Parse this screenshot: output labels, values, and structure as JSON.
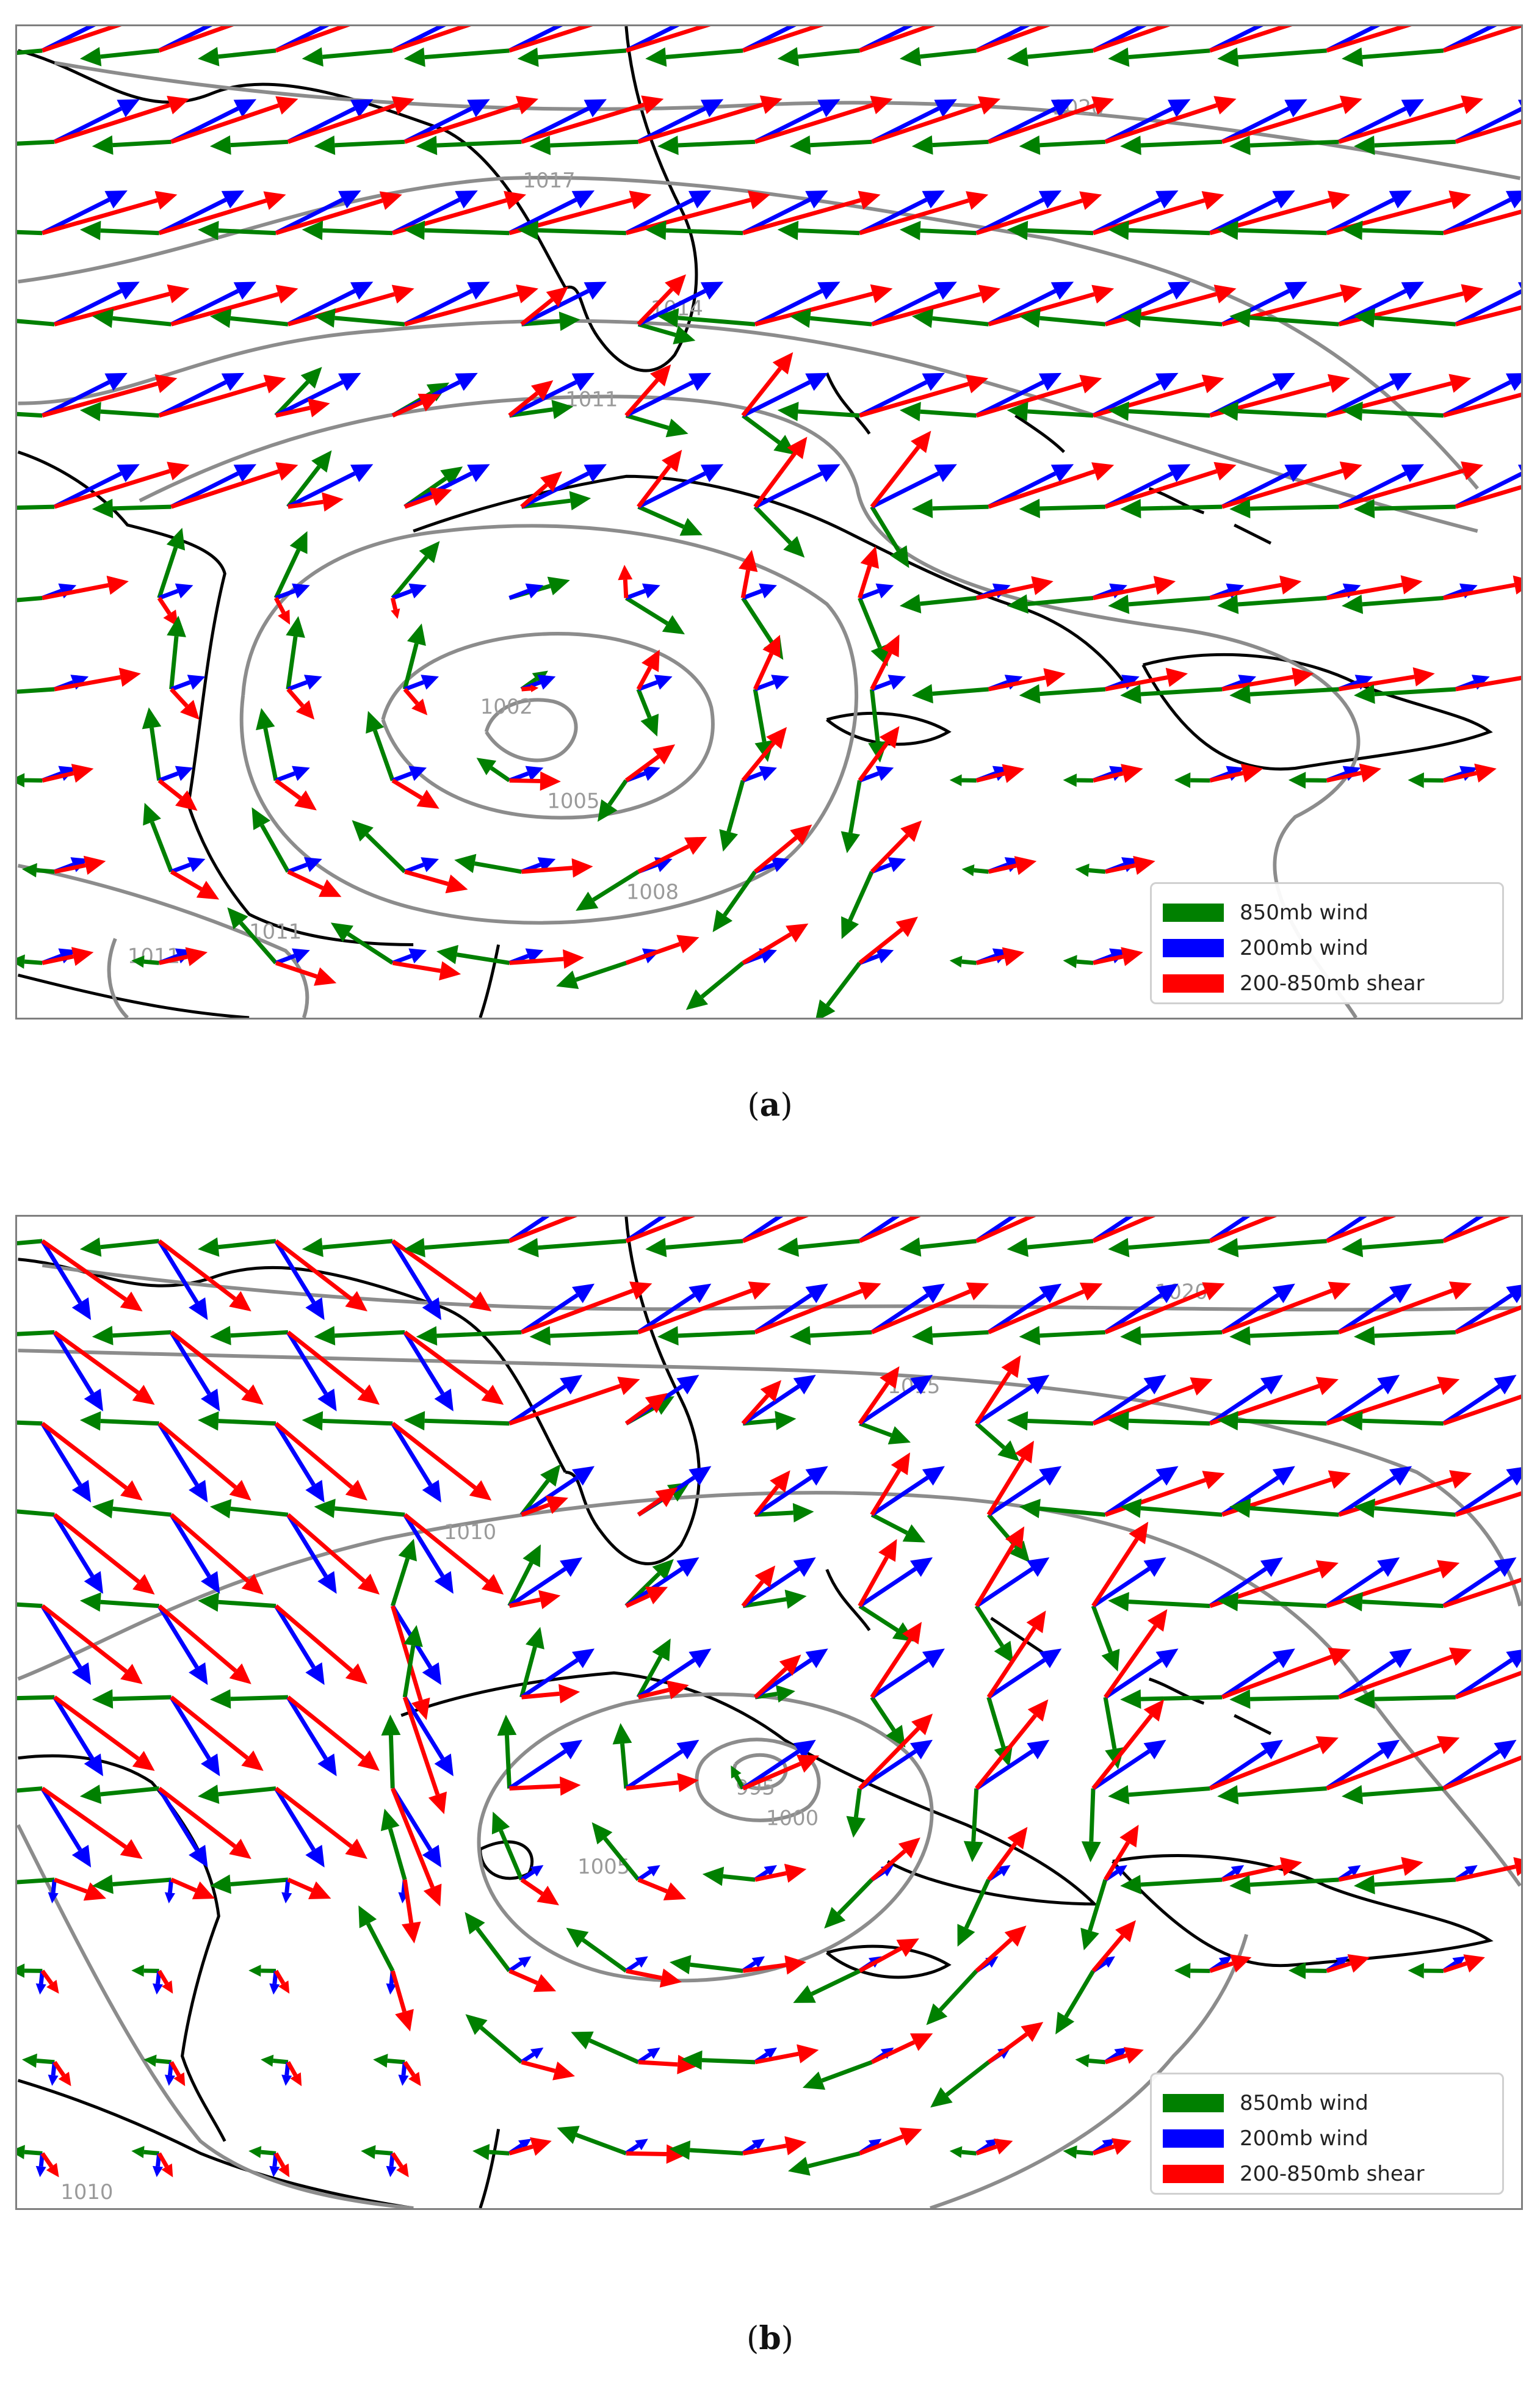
{
  "panels": [
    {
      "id": "a",
      "caption_letter": "a",
      "isobar_labels": [
        "1020",
        "1017",
        "1014",
        "1011",
        "1008",
        "1005",
        "1002",
        "1011",
        "1011"
      ],
      "legend": [
        {
          "label": "850mb wind",
          "color": "#008000"
        },
        {
          "label": "200mb wind",
          "color": "#0000ff"
        },
        {
          "label": "200-850mb shear",
          "color": "#ff0000"
        }
      ]
    },
    {
      "id": "b",
      "caption_letter": "b",
      "isobar_labels": [
        "1020",
        "1015",
        "1010",
        "1005",
        "1000",
        "995",
        "1010"
      ],
      "legend": [
        {
          "label": "850mb wind",
          "color": "#008000"
        },
        {
          "label": "200mb wind",
          "color": "#0000ff"
        },
        {
          "label": "200-850mb shear",
          "color": "#ff0000"
        }
      ]
    }
  ],
  "colors": {
    "wind_850": "#008000",
    "wind_200": "#0000ff",
    "shear": "#ff0000",
    "coastline": "#000000",
    "isobar": "#8c8c8c"
  }
}
